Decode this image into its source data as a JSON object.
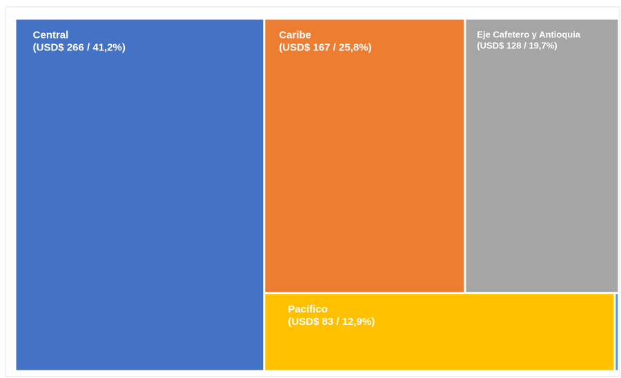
{
  "chart_data": {
    "type": "treemap",
    "categories": [
      "Central",
      "Caribe",
      "Eje Cafetero y Antioquia",
      "Pacífico",
      null
    ],
    "values": [
      266,
      167,
      128,
      83,
      1
    ],
    "value_labels": [
      "(USD$ 266 / 41,2%)",
      "(USD$ 167 / 25,8%)",
      "(USD$ 128 / 19,7%)",
      "(USD$ 83 / 12,9%)",
      null
    ],
    "colors": [
      "#4472c4",
      "#ed7d31",
      "#a5a5a5",
      "#ffc000",
      "#5b9bd5"
    ]
  }
}
